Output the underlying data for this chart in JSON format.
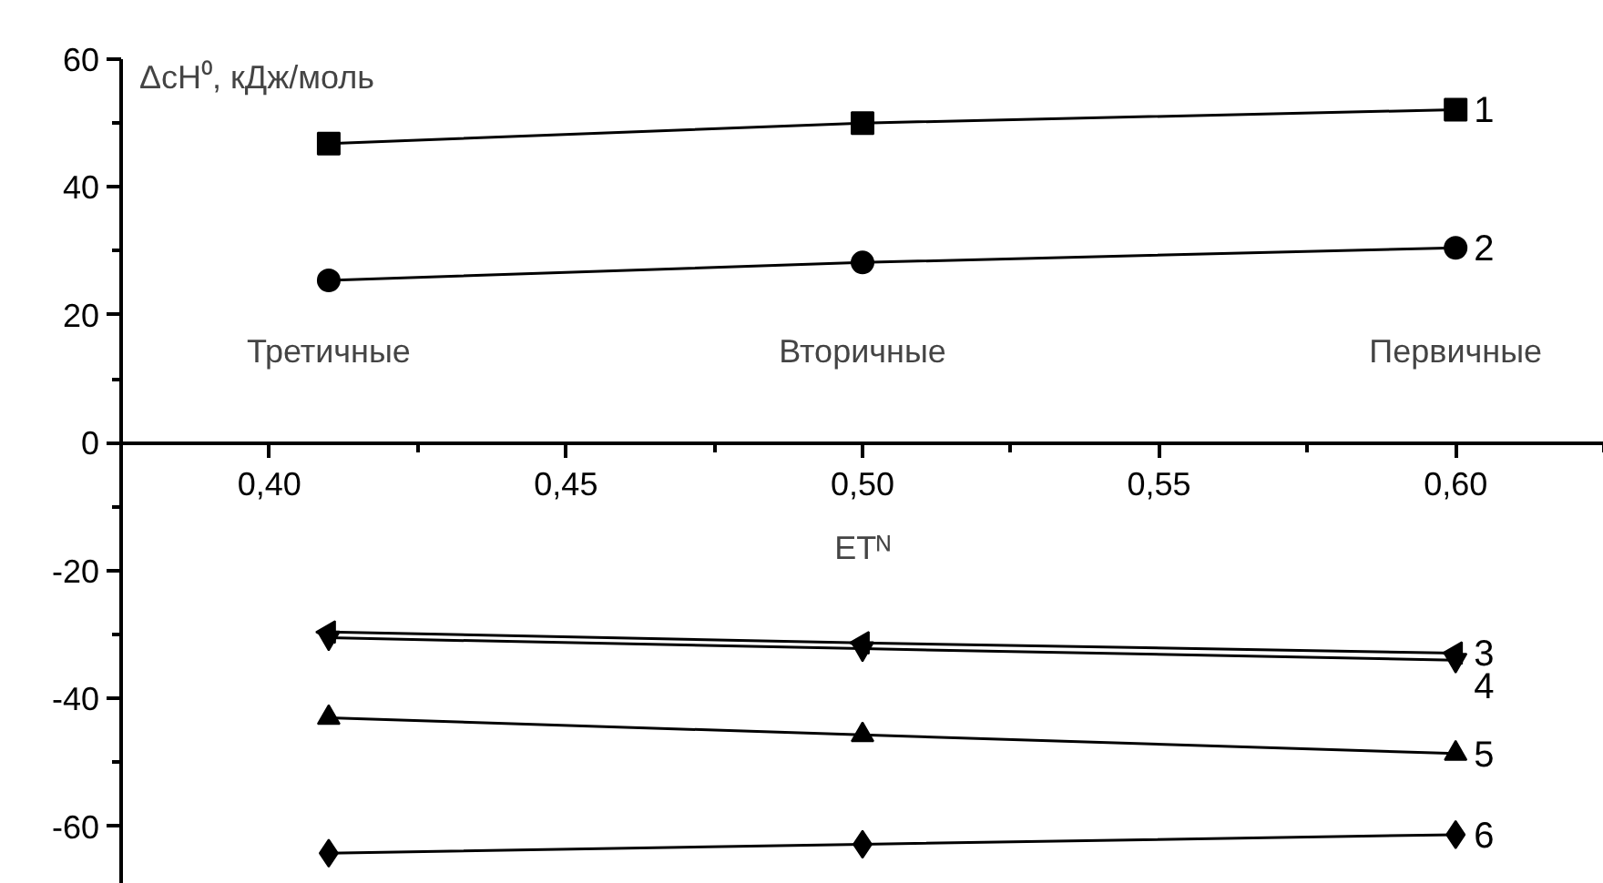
{
  "chart_data": {
    "type": "line",
    "xlabel": "ETᴺ",
    "ylabel": "ΔcH⁰, кДж/моль",
    "x": [
      0.41,
      0.5,
      0.6
    ],
    "series": [
      {
        "name": "1",
        "color": "#000000",
        "marker": "square",
        "values": [
          46.8,
          50.0,
          52.1
        ]
      },
      {
        "name": "2",
        "color": "#000000",
        "marker": "circle",
        "values": [
          25.4,
          28.2,
          30.5
        ]
      },
      {
        "name": "3",
        "color": "#000000",
        "marker": "triangle-left",
        "values": [
          -29.6,
          -31.3,
          -32.9
        ]
      },
      {
        "name": "4",
        "color": "#000000",
        "marker": "triangle-down",
        "values": [
          -30.5,
          -32.2,
          -34.0
        ]
      },
      {
        "name": "5",
        "color": "#000000",
        "marker": "triangle",
        "values": [
          -43.0,
          -45.7,
          -48.6
        ]
      },
      {
        "name": "6",
        "color": "#000000",
        "marker": "diamond",
        "values": [
          -64.2,
          -62.8,
          -61.3
        ]
      }
    ],
    "annotations": [
      "Третичные",
      "Вторичные",
      "Первичные"
    ],
    "xlim": [
      0.375,
      0.625
    ],
    "ylim": [
      -69,
      60
    ],
    "xticks": [
      {
        "value": 0.4,
        "label": "0,40"
      },
      {
        "value": 0.45,
        "label": "0,45"
      },
      {
        "value": 0.5,
        "label": "0,50"
      },
      {
        "value": 0.55,
        "label": "0,55"
      },
      {
        "value": 0.6,
        "label": "0,60"
      }
    ],
    "yticks": [
      -60,
      -40,
      -20,
      0,
      20,
      40,
      60
    ],
    "grid": false,
    "legend": false,
    "line_style": "solid"
  }
}
